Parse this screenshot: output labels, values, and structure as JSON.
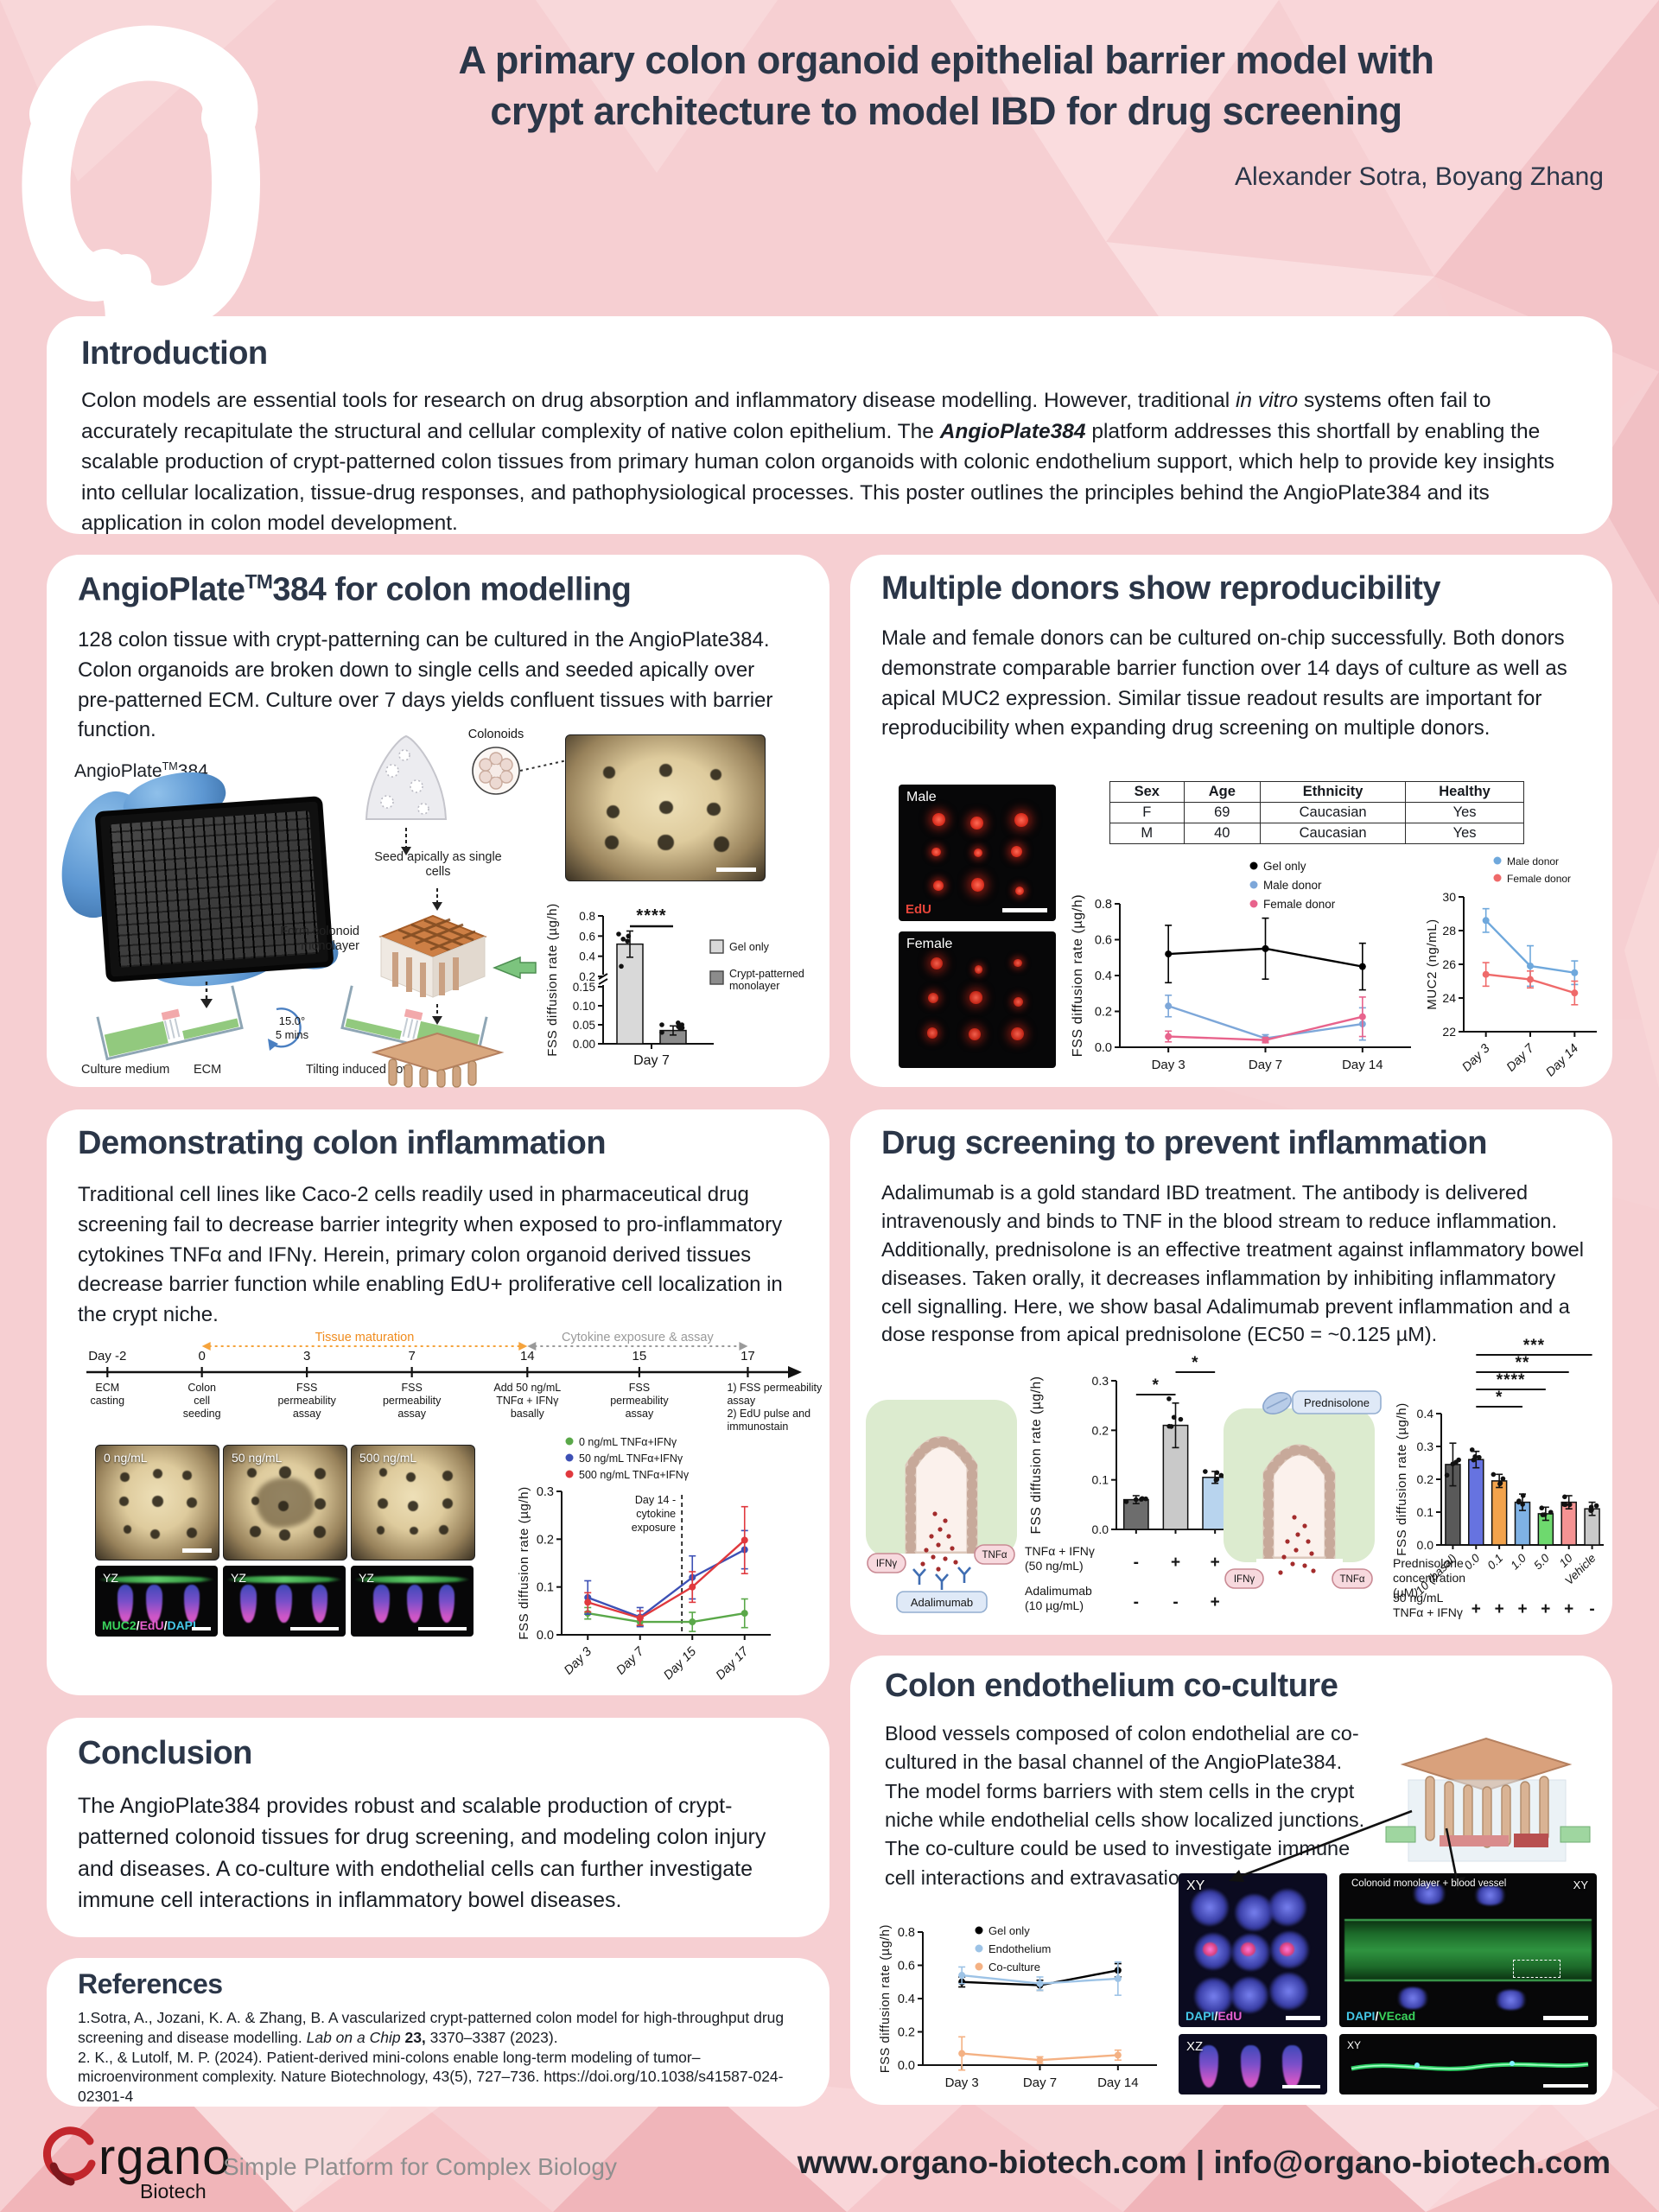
{
  "poster": {
    "title_line1": "A primary colon organoid epithelial barrier model with",
    "title_line2": "crypt architecture to model IBD for drug screening",
    "authors": "Alexander Sotra, Boyang Zhang"
  },
  "intro": {
    "heading": "Introduction",
    "p1": "Colon models are essential tools for research on drug absorption and inflammatory disease modelling. However, traditional ",
    "italic1": "in vitro",
    "p2": " systems often fail to accurately recapitulate the structural and cellular complexity of native colon epithelium. The ",
    "bold_italic": "AngioPlate384",
    "p3": " platform addresses this shortfall by enabling the scalable production of crypt-patterned colon tissues from primary human colon organoids with colonic endothelium support, which help to provide key insights into cellular localization, tissue-drug responses, and pathophysiological processes. This poster outlines the principles behind the AngioPlate384 and its application in colon model development."
  },
  "angioplate": {
    "heading_pre": "AngioPlate",
    "heading_sup": "TM",
    "heading_post": "384 for colon modelling",
    "body": "128 colon tissue with crypt-patterning can be cultured in the AngioPlate384. Colon organoids are broken down to single cells and seeded apically over pre-patterned ECM. Culture over 7 days yields confluent tissues with barrier function.",
    "fig_label_pre": "AngioPlate",
    "fig_label_sup": "TM",
    "fig_label_post": "384",
    "schematic": {
      "colonoids": "Colonoids",
      "seed_apically": "Seed apically as single cells",
      "form_monolayer": "Form colonoid monolayer",
      "tilt_angle": "15.0°",
      "tilt_time": "5 mins",
      "culture_medium": "Culture medium",
      "ecm": "ECM",
      "tilting_flow": "Tilting induced flow"
    }
  },
  "donors": {
    "heading": "Multiple donors show reproducibility",
    "body": "Male and female donors can be cultured on-chip successfully. Both donors demonstrate comparable barrier function over 14 days of culture as well as apical MUC2 expression. Similar tissue readout results are important for reproducibility when expanding drug screening on multiple donors.",
    "male_label": "Male",
    "female_label": "Female",
    "edu_label": "EdU",
    "table": {
      "headers": [
        "Sex",
        "Age",
        "Ethnicity",
        "Healthy"
      ],
      "rows": [
        [
          "F",
          "69",
          "Caucasian",
          "Yes"
        ],
        [
          "M",
          "40",
          "Caucasian",
          "Yes"
        ]
      ]
    }
  },
  "inflammation": {
    "heading": "Demonstrating colon inflammation",
    "body": "Traditional cell lines like Caco-2 cells readily used in pharmaceutical drug screening fail to decrease barrier integrity when exposed to pro-inflammatory cytokines TNFα and IFNγ. Herein, primary colon organoid derived tissues decrease barrier function while enabling EdU+ proliferative cell localization in the crypt niche.",
    "timeline": {
      "phase1": "Tissue maturation",
      "phase2": "Cytokine exposure & assay",
      "ticks": [
        "Day -2",
        "0",
        "3",
        "7",
        "14",
        "15",
        "17"
      ],
      "events": [
        "ECM\ncasting",
        "Colon\ncell\nseeding",
        "FSS\npermeability\nassay",
        "FSS\npermeability\nassay",
        "Add 50 ng/mL\nTNFα + IFNγ\nbasally",
        "FSS\npermeability\nassay",
        "1) FSS permeability\nassay\n2) EdU pulse and\nimmunostain"
      ]
    },
    "panel_labels": [
      "0 ng/mL",
      "50 ng/mL",
      "500 ng/mL"
    ],
    "yz_label": "YZ",
    "stain_muc2": "MUC2",
    "stain_edu": "EdU",
    "stain_dapi": "DAPI",
    "slash": "/"
  },
  "drug": {
    "heading": "Drug screening to prevent inflammation",
    "body": "Adalimumab is a gold standard IBD treatment. The antibody is delivered intravenously and binds to TNF in the blood stream to reduce inflammation. Additionally, prednisolone is an effective treatment against inflammatory bowel diseases. Taken orally, it decreases inflammation by inhibiting inflammatory cell signalling. Here, we show basal Adalimumab prevent inflammation and a dose response from apical prednisolone (EC50 = ~0.125 µM).",
    "ifny": "IFNγ",
    "tnfa": "TNFα",
    "adalimumab": "Adalimumab",
    "prednisolone": "Prednisolone"
  },
  "conclusion": {
    "heading": "Conclusion",
    "body": "The AngioPlate384 provides robust and scalable production of crypt-patterned colonoid tissues for drug screening, and modeling colon injury and diseases. A co-culture with endothelial cells can further investigate immune cell interactions in inflammatory bowel diseases."
  },
  "references": {
    "heading": "References",
    "ref1_pre": "1.Sotra, A., Jozani, K. A. & Zhang, B. A vascularized crypt-patterned colon model for high-throughput drug screening and disease modelling. ",
    "ref1_italic": "Lab on a Chip",
    "ref1_bold": " 23,",
    "ref1_post": " 3370–3387 (2023).",
    "ref2": "2. K., & Lutolf, M. P. (2024). Patient-derived mini-colons enable long-term modeling of tumor–microenvironment complexity. Nature Biotechnology, 43(5), 727–736. https://doi.org/10.1038/s41587-024-02301-4"
  },
  "coculture": {
    "heading": "Colon endothelium co-culture",
    "body": "Blood vessels composed of colon endothelial are co-cultured in the basal channel of the AngioPlate384. The model forms barriers with stem cells in the crypt niche while endothelial cells show localized junctions. The co-culture could be used to investigate immune cell interactions and extravasation.",
    "xy_label": "XY",
    "xz_label": "XZ",
    "vessel_caption": "Colonoid monolayer + blood vessel",
    "dapi": "DAPI",
    "edu": "EdU",
    "vecad": "VEcad",
    "slash": "/"
  },
  "footer": {
    "logo_main": "rgano",
    "logo_sub": "Biotech",
    "tagline": "Simple Platform for Complex Biology",
    "contact": "www.organo-biotech.com | info@organo-biotech.com"
  },
  "chart_data": [
    {
      "id": "day7_bar",
      "type": "bar",
      "ylabel": "FSS diffusion rate (µg/h)",
      "broken_axis": {
        "lower": [
          0,
          0.15
        ],
        "upper": [
          0.2,
          0.8
        ],
        "lower_ticks": [
          "0.00",
          "0.05",
          "0.10",
          "0.15"
        ],
        "upper_ticks": [
          "0.2",
          "0.4",
          "0.6",
          "0.8"
        ]
      },
      "categories": [
        "Gel only",
        "Crypt-patterned monolayer"
      ],
      "values": [
        0.52,
        0.035
      ],
      "errors": [
        0.13,
        0.012
      ],
      "colors": [
        "#d9d9d9",
        "#8c8c8c"
      ],
      "xlabel": "Day 7",
      "significance": "****",
      "legend": [
        {
          "label": "Gel only",
          "color": "#d9d9d9"
        },
        {
          "label": "Crypt-patterned monolayer",
          "color": "#8c8c8c"
        }
      ]
    },
    {
      "id": "donor_fss",
      "type": "line",
      "ylabel": "FSS diffusion rate (µg/h)",
      "ylim": [
        0,
        0.8
      ],
      "yticks": [
        "0.0",
        "0.2",
        "0.4",
        "0.6",
        "0.8"
      ],
      "x": [
        "Day 3",
        "Day 7",
        "Day 14"
      ],
      "series": [
        {
          "name": "Gel only",
          "color": "#000000",
          "values": [
            0.52,
            0.55,
            0.45
          ],
          "errors": [
            0.16,
            0.17,
            0.13
          ]
        },
        {
          "name": "Male donor",
          "color": "#7da7d9",
          "values": [
            0.23,
            0.05,
            0.13
          ],
          "errors": [
            0.06,
            0.02,
            0.09
          ]
        },
        {
          "name": "Female donor",
          "color": "#e8638c",
          "values": [
            0.06,
            0.04,
            0.17
          ],
          "errors": [
            0.03,
            0.015,
            0.11
          ]
        }
      ]
    },
    {
      "id": "muc2",
      "type": "line",
      "ylabel": "MUC2 (ng/mL)",
      "ylim": [
        22,
        30
      ],
      "yticks": [
        "22",
        "24",
        "26",
        "28",
        "30"
      ],
      "x": [
        "Day 3",
        "Day 7",
        "Day 14"
      ],
      "rotate_x": true,
      "series": [
        {
          "name": "Male donor",
          "color": "#6fa8dc",
          "values": [
            28.6,
            25.9,
            25.5
          ],
          "errors": [
            0.7,
            1.2,
            0.7
          ]
        },
        {
          "name": "Female donor",
          "color": "#ef6a6a",
          "values": [
            25.4,
            25.1,
            24.3
          ],
          "errors": [
            0.7,
            0.5,
            0.7
          ]
        }
      ]
    },
    {
      "id": "cytokine_fss",
      "type": "line",
      "ylabel": "FSS diffusion rate (µg/h)",
      "ylim": [
        0,
        0.3
      ],
      "yticks": [
        "0.0",
        "0.1",
        "0.2",
        "0.3"
      ],
      "x": [
        "Day 3",
        "Day 7",
        "Day 15",
        "Day 17"
      ],
      "rotate_x": true,
      "annotation": {
        "vline_x": 1.8,
        "label": "Day 14 -\ncytokine\nexposure"
      },
      "series": [
        {
          "name": "0 ng/mL TNFα+IFNγ",
          "color": "#5aa849",
          "values": [
            0.045,
            0.027,
            0.027,
            0.045
          ],
          "errors": [
            0.012,
            0.008,
            0.02,
            0.03
          ]
        },
        {
          "name": "50 ng/mL TNFα+IFNγ",
          "color": "#3d50b5",
          "values": [
            0.078,
            0.037,
            0.12,
            0.178
          ],
          "errors": [
            0.035,
            0.02,
            0.045,
            0.04
          ]
        },
        {
          "name": "500 ng/mL TNFα+IFNγ",
          "color": "#e0393e",
          "values": [
            0.068,
            0.035,
            0.1,
            0.198
          ],
          "errors": [
            0.02,
            0.015,
            0.032,
            0.07
          ]
        }
      ]
    },
    {
      "id": "adalimumab_bar",
      "type": "bar",
      "ylabel": "FSS diffusion rate (µg/h)",
      "ylim": [
        0,
        0.3
      ],
      "yticks": [
        "0.0",
        "0.1",
        "0.2",
        "0.3"
      ],
      "values": [
        0.06,
        0.21,
        0.105
      ],
      "errors": [
        0.008,
        0.045,
        0.012
      ],
      "colors": [
        "#6d6d6d",
        "#c9c9c9",
        "#b8d4ee"
      ],
      "sig": [
        {
          "from": 0,
          "to": 1,
          "label": "*"
        },
        {
          "from": 1,
          "to": 2,
          "label": "*"
        }
      ],
      "rows": [
        {
          "label": "TNFα + IFNγ\n(50 ng/mL)",
          "values": [
            "-",
            "+",
            "+"
          ]
        },
        {
          "label": "Adalimumab\n(10 µg/mL)",
          "values": [
            "-",
            "-",
            "+"
          ]
        }
      ]
    },
    {
      "id": "prednisolone_bar",
      "type": "bar",
      "ylabel": "FSS diffusion rate (µg/h)",
      "ylim": [
        0,
        0.4
      ],
      "yticks": [
        "0.0",
        "0.1",
        "0.2",
        "0.3",
        "0.4"
      ],
      "categories": [
        "10 (basal)",
        "0.0",
        "0.1",
        "1.0",
        "5.0",
        "10",
        "Vehicle"
      ],
      "cat_row_label": "Prednisolone\nconcentration\n(µM)",
      "values": [
        0.245,
        0.26,
        0.195,
        0.13,
        0.095,
        0.13,
        0.11
      ],
      "errors": [
        0.065,
        0.025,
        0.02,
        0.025,
        0.02,
        0.02,
        0.02
      ],
      "colors": [
        "#595959",
        "#6673e0",
        "#f2a34c",
        "#7fb2e5",
        "#6ed96e",
        "#f59393",
        "#c9c9c9"
      ],
      "rotate_x": true,
      "sig": [
        {
          "from": 1,
          "to": 3,
          "label": "*"
        },
        {
          "from": 1,
          "to": 4,
          "label": "****"
        },
        {
          "from": 1,
          "to": 5,
          "label": "**"
        },
        {
          "from": 1,
          "to": 6,
          "label": "***"
        }
      ],
      "rows": [
        {
          "label": "50 ng/mL\nTNFα + IFNγ",
          "values": [
            "",
            "+",
            "+",
            "+",
            "+",
            "+",
            "-"
          ]
        }
      ]
    },
    {
      "id": "coculture_fss",
      "type": "line",
      "ylabel": "FSS diffusion rate (µg/h)",
      "ylim": [
        0,
        0.8
      ],
      "yticks": [
        "0.0",
        "0.2",
        "0.4",
        "0.6",
        "0.8"
      ],
      "x": [
        "Day 3",
        "Day 7",
        "Day 14"
      ],
      "series": [
        {
          "name": "Gel only",
          "color": "#000000",
          "values": [
            0.5,
            0.48,
            0.57
          ],
          "errors": [
            0.03,
            0.03,
            0.04
          ]
        },
        {
          "name": "Endothelium",
          "color": "#9dc3e6",
          "values": [
            0.54,
            0.49,
            0.52
          ],
          "errors": [
            0.05,
            0.04,
            0.1
          ]
        },
        {
          "name": "Co-culture",
          "color": "#f4b183",
          "values": [
            0.07,
            0.03,
            0.06
          ],
          "errors": [
            0.1,
            0.02,
            0.03
          ]
        }
      ]
    }
  ]
}
